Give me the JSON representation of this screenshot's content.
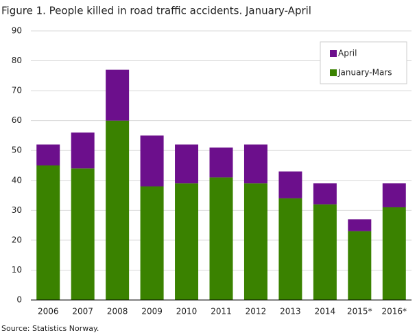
{
  "chart_data": {
    "type": "stacked-bar",
    "title": "Figure 1. People killed in road traffic accidents. January-April",
    "source": "Source: Statistics Norway.",
    "categories": [
      "2006",
      "2007",
      "2008",
      "2009",
      "2010",
      "2011",
      "2012",
      "2013",
      "2014",
      "2015*",
      "2016*"
    ],
    "series": [
      {
        "name": "January-Mars",
        "color": "#3a8200",
        "values": [
          45,
          44,
          60,
          38,
          39,
          41,
          39,
          34,
          32,
          23,
          31
        ]
      },
      {
        "name": "April",
        "color": "#6c0f8c",
        "values": [
          7,
          12,
          17,
          17,
          13,
          10,
          13,
          9,
          7,
          4,
          8
        ]
      }
    ],
    "ylim": [
      0,
      90
    ],
    "yticks": [
      0,
      10,
      20,
      30,
      40,
      50,
      60,
      70,
      80,
      90
    ],
    "grid": true,
    "legend": "top-right"
  }
}
